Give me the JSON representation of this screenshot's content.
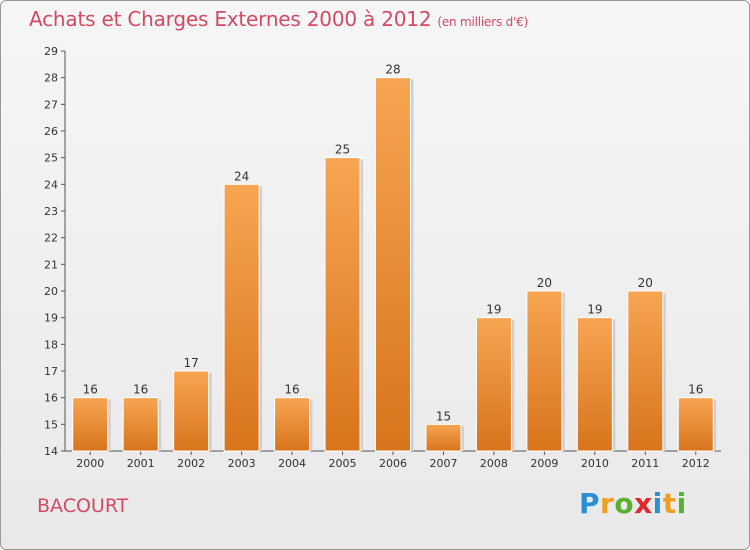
{
  "header": {
    "title": "Achats et Charges Externes 2000 à 2012",
    "subtitle": "(en milliers d'€)"
  },
  "footer": {
    "commune": "BACOURT",
    "logo_letters": [
      "P",
      "r",
      "o",
      "x",
      "i",
      "t",
      "i"
    ],
    "logo_colors": [
      "#2a8fd3",
      "#f0a021",
      "#58b030",
      "#e2262b",
      "#2a8fd3",
      "#f0a021",
      "#58b030"
    ]
  },
  "chart_data": {
    "type": "bar",
    "categories": [
      "2000",
      "2001",
      "2002",
      "2003",
      "2004",
      "2005",
      "2006",
      "2007",
      "2008",
      "2009",
      "2010",
      "2011",
      "2012"
    ],
    "values": [
      16,
      16,
      17,
      24,
      16,
      25,
      28,
      15,
      19,
      20,
      19,
      20,
      16
    ],
    "ylim": [
      14,
      29
    ],
    "yticks": [
      14,
      15,
      16,
      17,
      18,
      19,
      20,
      21,
      22,
      23,
      24,
      25,
      26,
      27,
      28,
      29
    ],
    "grid": false,
    "bar_color_top": "#f7a552",
    "bar_color_bottom": "#d8741c"
  }
}
